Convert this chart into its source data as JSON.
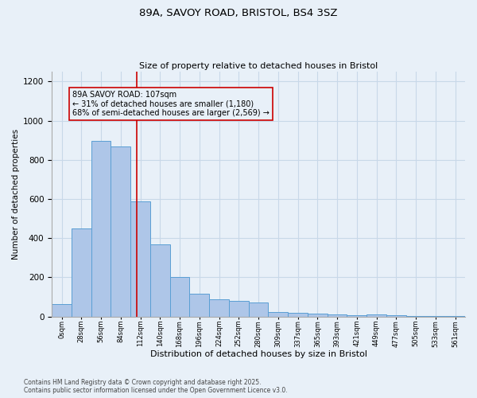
{
  "title_line1": "89A, SAVOY ROAD, BRISTOL, BS4 3SZ",
  "title_line2": "Size of property relative to detached houses in Bristol",
  "xlabel": "Distribution of detached houses by size in Bristol",
  "ylabel": "Number of detached properties",
  "footnote": "Contains HM Land Registry data © Crown copyright and database right 2025.\nContains public sector information licensed under the Open Government Licence v3.0.",
  "bar_labels": [
    "0sqm",
    "28sqm",
    "56sqm",
    "84sqm",
    "112sqm",
    "140sqm",
    "168sqm",
    "196sqm",
    "224sqm",
    "252sqm",
    "280sqm",
    "309sqm",
    "337sqm",
    "365sqm",
    "393sqm",
    "421sqm",
    "449sqm",
    "477sqm",
    "505sqm",
    "533sqm",
    "561sqm"
  ],
  "bar_values": [
    65,
    450,
    895,
    870,
    590,
    370,
    200,
    115,
    90,
    80,
    70,
    25,
    20,
    15,
    12,
    8,
    10,
    5,
    3,
    2,
    1
  ],
  "bar_color": "#aec6e8",
  "bar_edge_color": "#5a9fd4",
  "grid_color": "#c8d8e8",
  "background_color": "#e8f0f8",
  "vline_color": "#cc0000",
  "annotation_text": "89A SAVOY ROAD: 107sqm\n← 31% of detached houses are smaller (1,180)\n68% of semi-detached houses are larger (2,569) →",
  "ylim": [
    0,
    1250
  ],
  "yticks": [
    0,
    200,
    400,
    600,
    800,
    1000,
    1200
  ]
}
